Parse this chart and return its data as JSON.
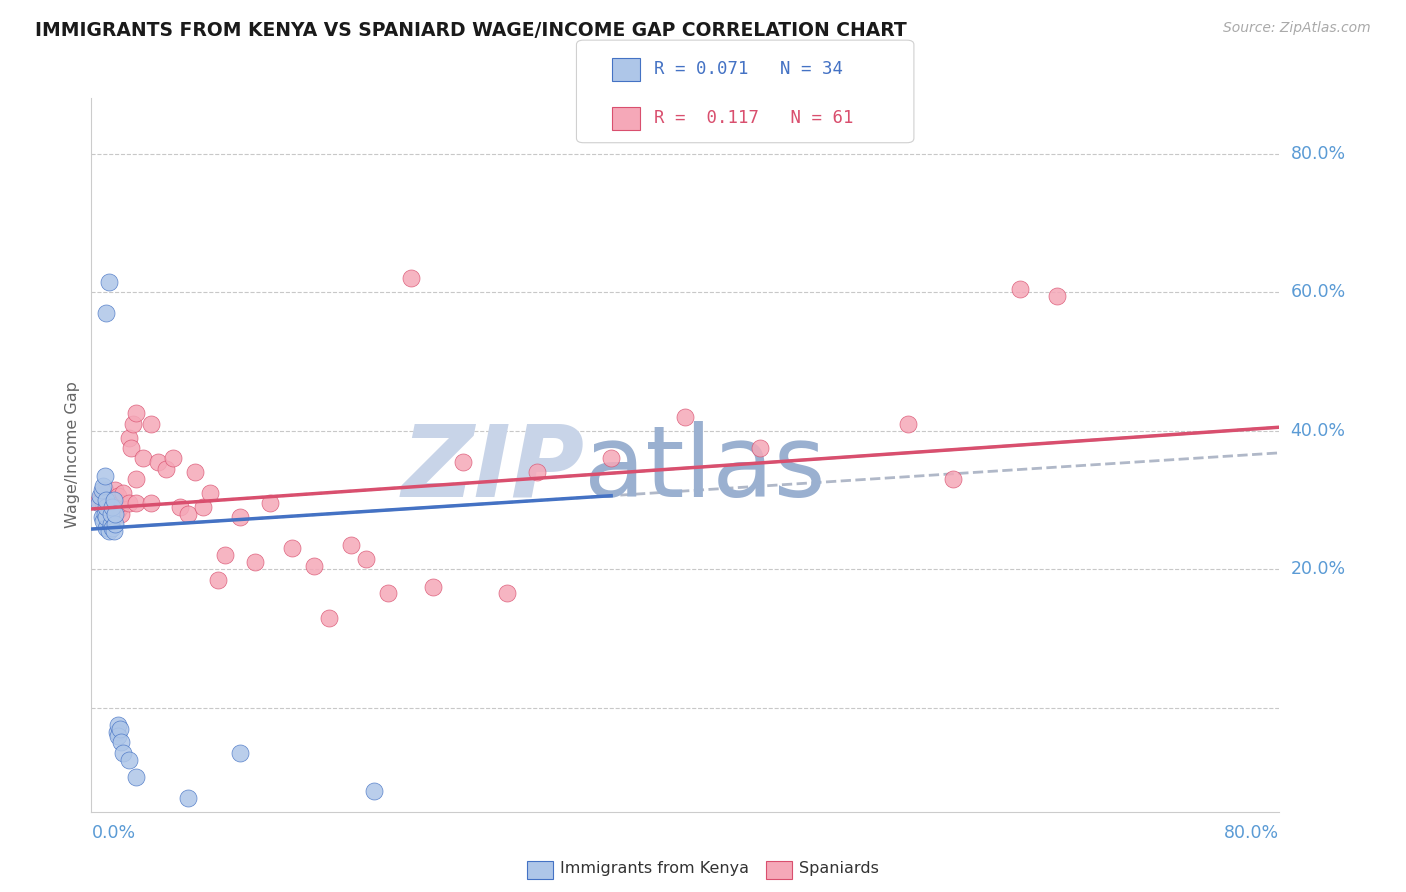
{
  "title": "IMMIGRANTS FROM KENYA VS SPANIARD WAGE/INCOME GAP CORRELATION CHART",
  "source_text": "Source: ZipAtlas.com",
  "ylabel": "Wage/Income Gap",
  "xlim": [
    0.0,
    0.8
  ],
  "ylim": [
    -0.15,
    0.88
  ],
  "ytick_vals": [
    0.0,
    0.2,
    0.4,
    0.6,
    0.8
  ],
  "ytick_labels": [
    "",
    "20.0%",
    "40.0%",
    "60.0%",
    "80.0%"
  ],
  "blue_R": "0.071",
  "blue_N": "34",
  "pink_R": "0.117",
  "pink_N": "61",
  "blue_scatter_color": "#aec6e8",
  "blue_edge_color": "#4472c4",
  "pink_scatter_color": "#f5a8b8",
  "pink_edge_color": "#d94f6e",
  "blue_line_color": "#4472c4",
  "pink_line_color": "#d94f6e",
  "dash_line_color": "#b0b8c8",
  "axis_tick_color": "#5b9bd5",
  "grid_color": "#c8c8c8",
  "title_color": "#1a1a1a",
  "watermark_color_zip": "#c8d4e8",
  "watermark_color_atlas": "#9ab0d0",
  "blue_scatter_x": [
    0.005,
    0.006,
    0.007,
    0.007,
    0.008,
    0.008,
    0.009,
    0.009,
    0.01,
    0.01,
    0.01,
    0.01,
    0.01,
    0.012,
    0.012,
    0.013,
    0.013,
    0.014,
    0.014,
    0.015,
    0.015,
    0.016,
    0.016,
    0.017,
    0.018,
    0.018,
    0.019,
    0.02,
    0.021,
    0.025,
    0.03,
    0.065,
    0.1,
    0.19
  ],
  "blue_scatter_y": [
    0.295,
    0.305,
    0.275,
    0.315,
    0.27,
    0.32,
    0.28,
    0.335,
    0.26,
    0.275,
    0.29,
    0.3,
    0.57,
    0.615,
    0.255,
    0.265,
    0.28,
    0.26,
    0.29,
    0.255,
    0.3,
    0.265,
    0.28,
    -0.035,
    -0.025,
    -0.04,
    -0.03,
    -0.05,
    -0.065,
    -0.075,
    -0.1,
    -0.13,
    -0.065,
    -0.12
  ],
  "pink_scatter_x": [
    0.005,
    0.007,
    0.008,
    0.009,
    0.01,
    0.01,
    0.01,
    0.012,
    0.013,
    0.014,
    0.015,
    0.016,
    0.016,
    0.017,
    0.018,
    0.018,
    0.019,
    0.02,
    0.02,
    0.021,
    0.025,
    0.025,
    0.027,
    0.028,
    0.03,
    0.03,
    0.03,
    0.035,
    0.04,
    0.04,
    0.045,
    0.05,
    0.055,
    0.06,
    0.065,
    0.07,
    0.075,
    0.08,
    0.085,
    0.09,
    0.1,
    0.11,
    0.12,
    0.135,
    0.15,
    0.16,
    0.175,
    0.185,
    0.2,
    0.215,
    0.23,
    0.25,
    0.28,
    0.3,
    0.35,
    0.4,
    0.45,
    0.55,
    0.58,
    0.625,
    0.65
  ],
  "pink_scatter_y": [
    0.3,
    0.31,
    0.295,
    0.315,
    0.285,
    0.295,
    0.31,
    0.28,
    0.295,
    0.29,
    0.285,
    0.3,
    0.315,
    0.295,
    0.285,
    0.305,
    0.29,
    0.28,
    0.295,
    0.31,
    0.295,
    0.39,
    0.375,
    0.41,
    0.295,
    0.33,
    0.425,
    0.36,
    0.295,
    0.41,
    0.355,
    0.345,
    0.36,
    0.29,
    0.28,
    0.34,
    0.29,
    0.31,
    0.185,
    0.22,
    0.275,
    0.21,
    0.295,
    0.23,
    0.205,
    0.13,
    0.235,
    0.215,
    0.165,
    0.62,
    0.175,
    0.355,
    0.165,
    0.34,
    0.36,
    0.42,
    0.375,
    0.41,
    0.33,
    0.605,
    0.595
  ],
  "legend_border_color": "#d0d0d0"
}
